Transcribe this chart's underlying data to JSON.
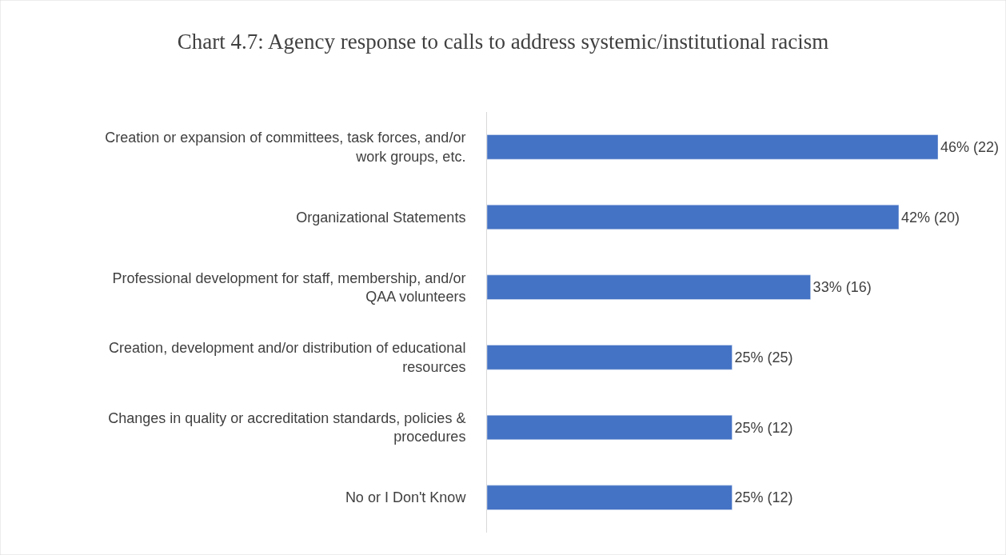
{
  "chart_data": {
    "type": "bar",
    "orientation": "horizontal",
    "title": "Chart 4.7: Agency response to calls to address systemic/institutional racism",
    "categories": [
      "Creation or expansion of committees, task forces, and/or work groups, etc.",
      "Organizational Statements",
      "Professional development for staff, membership, and/or QAA volunteers",
      "Creation, development and/or distribution of educational resources",
      "Changes in quality or accreditation standards, policies & procedures",
      "No or I Don't Know"
    ],
    "values": [
      46,
      42,
      33,
      25,
      25,
      25
    ],
    "value_labels": [
      "46% (22)",
      "42% (20)",
      "33% (16)",
      "25% (25)",
      "25% (12)",
      "25% (12)"
    ],
    "color": "#4472c4",
    "legend": false
  }
}
